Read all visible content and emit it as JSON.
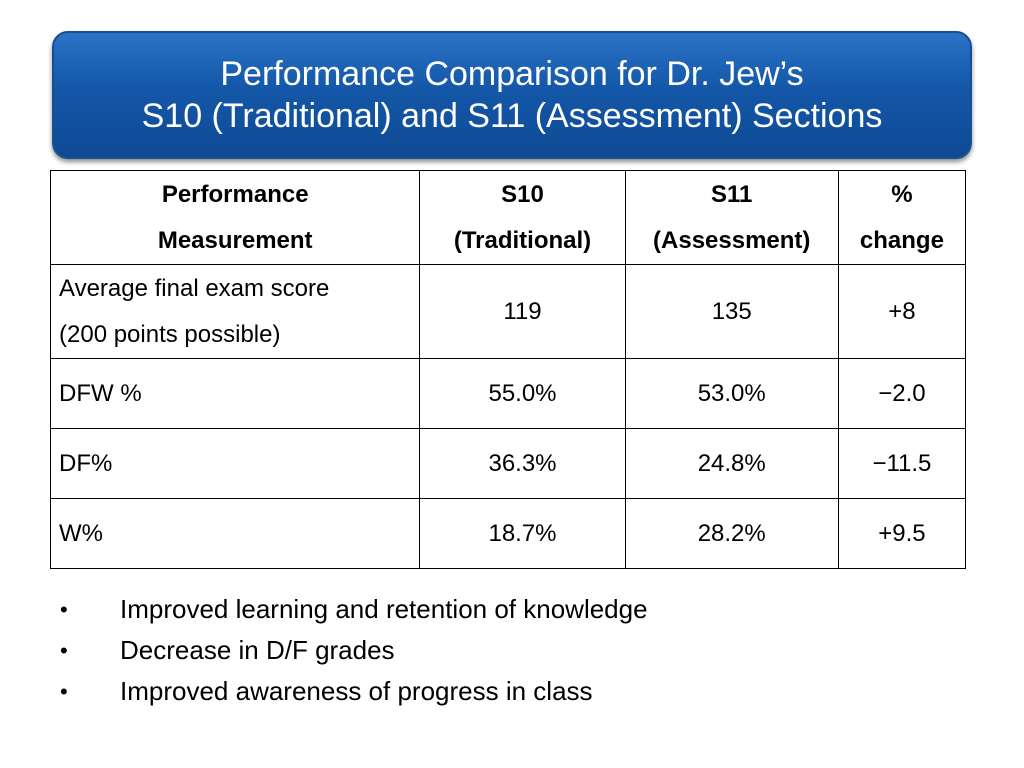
{
  "title": {
    "line1": "Performance Comparison for Dr. Jew’s",
    "line2": "S10 (Traditional) and S11 (Assessment) Sections"
  },
  "table": {
    "headers": [
      {
        "line1": "Performance",
        "line2": "Measurement"
      },
      {
        "line1": "S10",
        "line2": "(Traditional)"
      },
      {
        "line1": "S11",
        "line2": "(Assessment)"
      },
      {
        "line1": "%",
        "line2": "change"
      }
    ],
    "rows": [
      {
        "measure_line1": "Average final exam score",
        "measure_line2": "(200 points possible)",
        "s10": "119",
        "s11": "135",
        "change": "+8"
      },
      {
        "measure_line1": "DFW %",
        "s10": "55.0%",
        "s11": "53.0%",
        "change": "−2.0"
      },
      {
        "measure_line1": "DF%",
        "s10": "36.3%",
        "s11": "24.8%",
        "change": "−11.5"
      },
      {
        "measure_line1": "W%",
        "s10": "18.7%",
        "s11": "28.2%",
        "change": "+9.5"
      }
    ]
  },
  "bullets": [
    "Improved learning and retention of knowledge",
    "Decrease in D/F grades",
    "Improved awareness of progress in class"
  ],
  "bullet_symbol": "•"
}
